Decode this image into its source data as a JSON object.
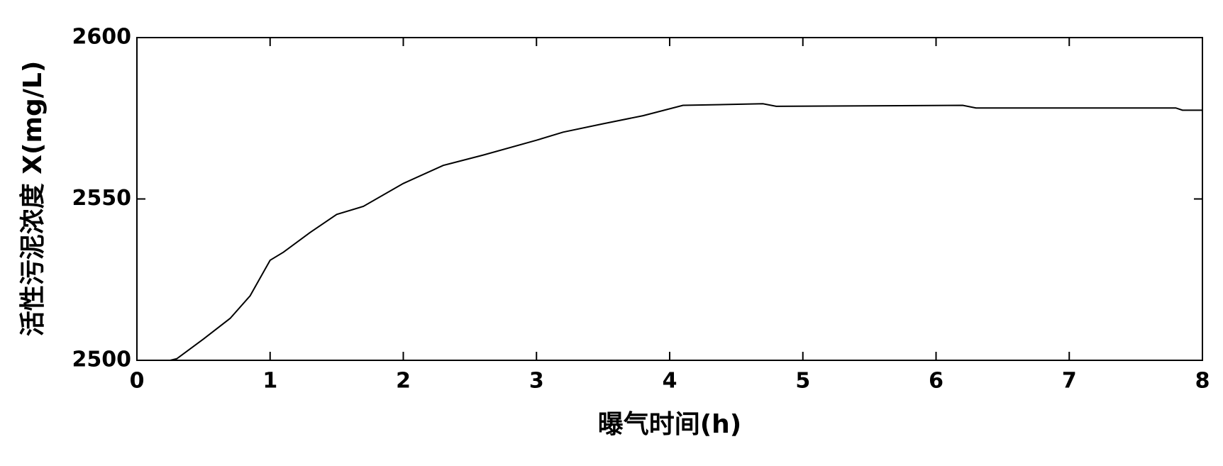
{
  "chart_data": {
    "type": "line",
    "xlabel": "曝气时间(h)",
    "ylabel": "活性污泥浓度 X(mg/L)",
    "x": [
      0.25,
      0.3,
      0.5,
      0.7,
      0.85,
      1.0,
      1.1,
      1.3,
      1.5,
      1.7,
      2.0,
      2.3,
      2.6,
      3.0,
      3.2,
      3.5,
      3.8,
      4.1,
      4.7,
      4.8,
      6.2,
      6.3,
      7.8,
      7.85,
      8.0
    ],
    "values": [
      2500,
      2500.5,
      2506.6,
      2513,
      2520,
      2531,
      2533.5,
      2539.6,
      2545.2,
      2547.7,
      2554.8,
      2560.4,
      2563.6,
      2568.2,
      2570.7,
      2573.3,
      2575.8,
      2579,
      2579.5,
      2578.7,
      2579,
      2578.2,
      2578.2,
      2577.5,
      2577.5
    ],
    "color": "#000000",
    "xlim": [
      0,
      8
    ],
    "xticks": [
      0,
      1,
      2,
      3,
      4,
      5,
      6,
      7,
      8
    ],
    "ylim": [
      2500,
      2600
    ],
    "yticks": [
      2500,
      2550,
      2600
    ]
  }
}
